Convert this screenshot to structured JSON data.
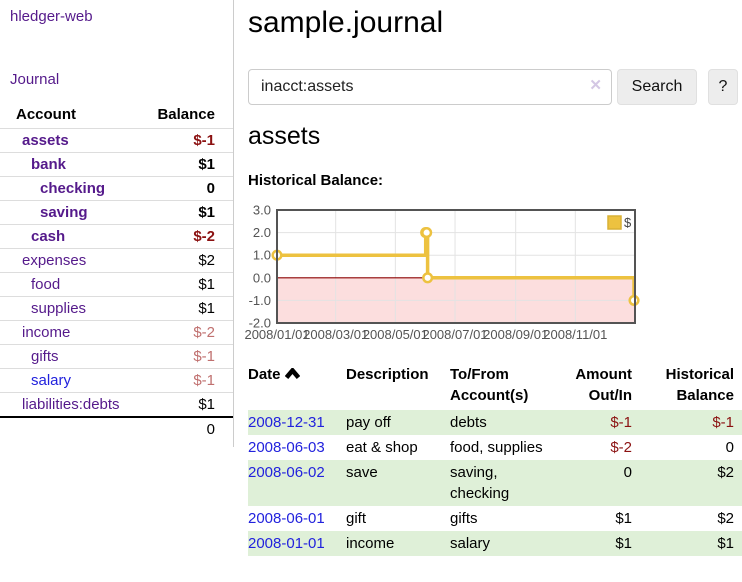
{
  "app": {
    "brand": "hledger-web",
    "nav_journal": "Journal"
  },
  "sidebar": {
    "header": {
      "account": "Account",
      "balance": "Balance"
    },
    "accounts": [
      {
        "name": "assets",
        "depth": 1,
        "matched": true,
        "balance": "$-1",
        "negative": true
      },
      {
        "name": "bank",
        "depth": 2,
        "matched": true,
        "balance": "$1",
        "negative": false
      },
      {
        "name": "checking",
        "depth": 3,
        "matched": true,
        "balance": "0",
        "negative": false
      },
      {
        "name": "saving",
        "depth": 3,
        "matched": true,
        "balance": "$1",
        "negative": false
      },
      {
        "name": "cash",
        "depth": 2,
        "matched": true,
        "balance": "$-2",
        "negative": true
      },
      {
        "name": "expenses",
        "depth": 1,
        "matched": false,
        "balance": "$2",
        "negative": false
      },
      {
        "name": "food",
        "depth": 2,
        "matched": false,
        "balance": "$1",
        "negative": false
      },
      {
        "name": "supplies",
        "depth": 2,
        "matched": false,
        "balance": "$1",
        "negative": false
      },
      {
        "name": "income",
        "depth": 1,
        "matched": false,
        "balance": "$-2",
        "negative": true
      },
      {
        "name": "gifts",
        "depth": 2,
        "matched": false,
        "balance": "$-1",
        "negative": true
      },
      {
        "name": "salary",
        "depth": 2,
        "matched": false,
        "balance": "$-1",
        "negative": true,
        "unvisited": true
      },
      {
        "name": "liabilities:debts",
        "depth": 1,
        "matched": false,
        "balance": "$1",
        "negative": false
      }
    ],
    "total": "0"
  },
  "header": {
    "title": "sample.journal"
  },
  "search": {
    "query": "inacct:assets",
    "clear_icon": "✕",
    "button": "Search",
    "help_button": "?"
  },
  "account_page": {
    "title": "assets",
    "chart_label": "Historical Balance:"
  },
  "chart_data": {
    "type": "line",
    "style": "step",
    "title": "Historical Balance",
    "series": [
      {
        "name": "$",
        "color": "#edc240",
        "points": [
          [
            "2008-01-01",
            1
          ],
          [
            "2008-06-01",
            2
          ],
          [
            "2008-06-02",
            2
          ],
          [
            "2008-06-03",
            0
          ],
          [
            "2008-12-31",
            -1
          ]
        ]
      }
    ],
    "x_range": [
      "2008-01-01",
      "2009-01-01"
    ],
    "x_ticks": [
      {
        "date": "2008-03-01",
        "label": "2008/03/01"
      },
      {
        "date": "2008-05-01",
        "label": "2008/05/01"
      },
      {
        "date": "2008-07-01",
        "label": "2008/07/01"
      },
      {
        "date": "2008-09-01",
        "label": "2008/09/01"
      },
      {
        "date": "2008-11-01",
        "label": "2008/11/01"
      }
    ],
    "x_tick_first": {
      "date": "2008-01-01",
      "label": "2008/01/01"
    },
    "y_ticks": [
      3.0,
      2.0,
      1.0,
      0.0,
      -1.0,
      -2.0
    ],
    "ylim": [
      -2,
      3
    ],
    "legend": {
      "label": "$",
      "position": "top-right"
    },
    "grid": true,
    "colors": {
      "negative_region": "#fcdede",
      "zero_line": "#8b0000",
      "grid": "#e3e3e3",
      "border": "#545454",
      "axis_text": "#545454",
      "legend_box_border": "#d8b136"
    }
  },
  "register": {
    "columns": [
      {
        "lines": [
          "Date"
        ],
        "sort": true,
        "align": "left"
      },
      {
        "lines": [
          "Description"
        ],
        "align": "left"
      },
      {
        "lines": [
          "To/From",
          "Account(s)"
        ],
        "align": "left"
      },
      {
        "lines": [
          "Amount",
          "Out/In"
        ],
        "align": "right",
        "key": "amount"
      },
      {
        "lines": [
          "Historical",
          "Balance"
        ],
        "align": "right",
        "key": "balance"
      }
    ],
    "rows": [
      {
        "date": "2008-12-31",
        "description": "pay off",
        "accounts": "debts",
        "amount": "$-1",
        "amount_negative": true,
        "balance": "$-1",
        "balance_negative": true
      },
      {
        "date": "2008-06-03",
        "description": "eat & shop",
        "accounts": "food, supplies",
        "amount": "$-2",
        "amount_negative": true,
        "balance": "0",
        "balance_negative": false
      },
      {
        "date": "2008-06-02",
        "description": "save",
        "accounts": "saving, checking",
        "amount": "0",
        "amount_negative": false,
        "balance": "$2",
        "balance_negative": false
      },
      {
        "date": "2008-06-01",
        "description": "gift",
        "accounts": "gifts",
        "amount": "$1",
        "amount_negative": false,
        "balance": "$2",
        "balance_negative": false
      },
      {
        "date": "2008-01-01",
        "description": "income",
        "accounts": "salary",
        "amount": "$1",
        "amount_negative": false,
        "balance": "$1",
        "balance_negative": false
      }
    ]
  }
}
